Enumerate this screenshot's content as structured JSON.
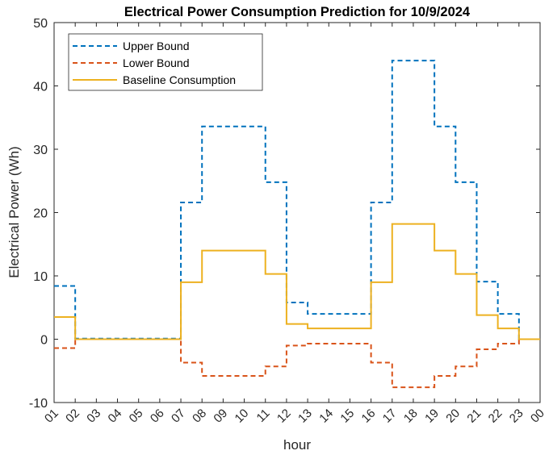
{
  "chart_data": {
    "type": "line",
    "style": "stairs",
    "title": "Electrical Power Consumption Prediction for 10/9/2024",
    "xlabel": "hour",
    "ylabel": "Electrical Power (Wh)",
    "ylim": [
      -10,
      50
    ],
    "yticks": [
      -10,
      0,
      10,
      20,
      30,
      40,
      50
    ],
    "x_tick_labels": [
      "01",
      "02",
      "03",
      "04",
      "05",
      "06",
      "07",
      "08",
      "09",
      "10",
      "11",
      "12",
      "13",
      "14",
      "15",
      "16",
      "17",
      "18",
      "19",
      "20",
      "21",
      "22",
      "23",
      "00"
    ],
    "grid": false,
    "legend_position": "top-left",
    "series": [
      {
        "name": "Upper Bound",
        "color": "#0072BD",
        "dash": "dashed",
        "values": [
          8.4,
          0.1,
          0.1,
          0.1,
          0.1,
          0.1,
          21.6,
          33.6,
          33.6,
          33.6,
          24.8,
          5.8,
          4.0,
          4.0,
          4.0,
          21.6,
          44.0,
          44.0,
          33.6,
          24.8,
          9.1,
          4.0,
          0.0
        ]
      },
      {
        "name": "Lower Bound",
        "color": "#D95319",
        "dash": "dashed",
        "values": [
          -1.4,
          0.0,
          0.0,
          0.0,
          0.0,
          0.0,
          -3.7,
          -5.8,
          -5.8,
          -5.8,
          -4.3,
          -1.0,
          -0.7,
          -0.7,
          -0.7,
          -3.7,
          -7.6,
          -7.6,
          -5.8,
          -4.3,
          -1.6,
          -0.7,
          0.0
        ]
      },
      {
        "name": "Baseline Consumption",
        "color": "#EDB120",
        "dash": "solid",
        "values": [
          3.5,
          0.0,
          0.0,
          0.0,
          0.0,
          0.0,
          9.0,
          14.0,
          14.0,
          14.0,
          10.3,
          2.4,
          1.7,
          1.7,
          1.7,
          9.0,
          18.2,
          18.2,
          14.0,
          10.3,
          3.8,
          1.7,
          0.0
        ]
      }
    ]
  }
}
